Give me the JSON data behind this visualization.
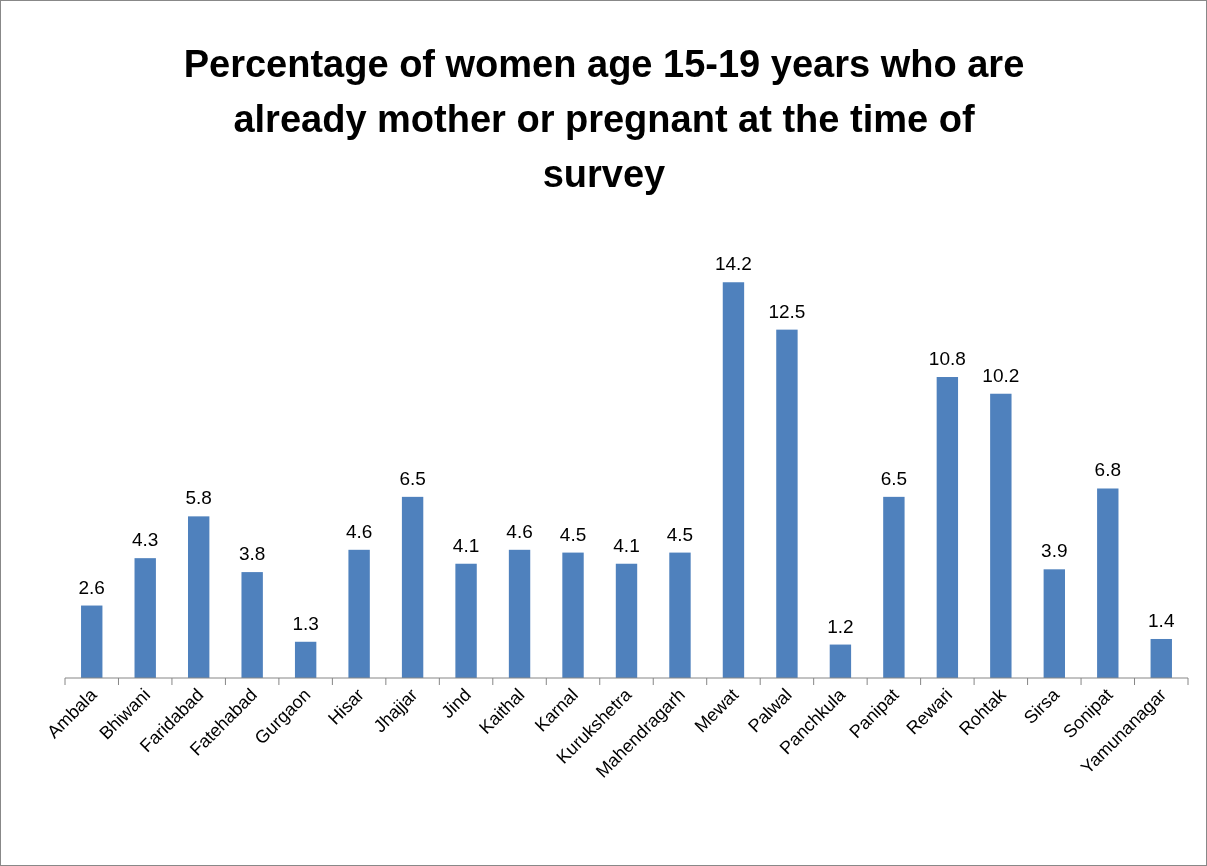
{
  "chart_data": {
    "type": "bar",
    "title": "Percentage of women age 15-19 years who are already mother or pregnant at the time of survey",
    "categories": [
      "Ambala",
      "Bhiwani",
      "Faridabad",
      "Fatehabad",
      "Gurgaon",
      "Hisar",
      "Jhajjar",
      "Jind",
      "Kaithal",
      "Karnal",
      "Kurukshetra",
      "Mahendragarh",
      "Mewat",
      "Palwal",
      "Panchkula",
      "Panipat",
      "Rewari",
      "Rohtak",
      "Sirsa",
      "Sonipat",
      "Yamunanagar"
    ],
    "values": [
      2.6,
      4.3,
      5.8,
      3.8,
      1.3,
      4.6,
      6.5,
      4.1,
      4.6,
      4.5,
      4.1,
      4.5,
      14.2,
      12.5,
      1.2,
      6.5,
      10.8,
      10.2,
      3.9,
      6.8,
      1.4
    ],
    "color": "#4f81bd",
    "data_labels": true,
    "grid": false
  }
}
